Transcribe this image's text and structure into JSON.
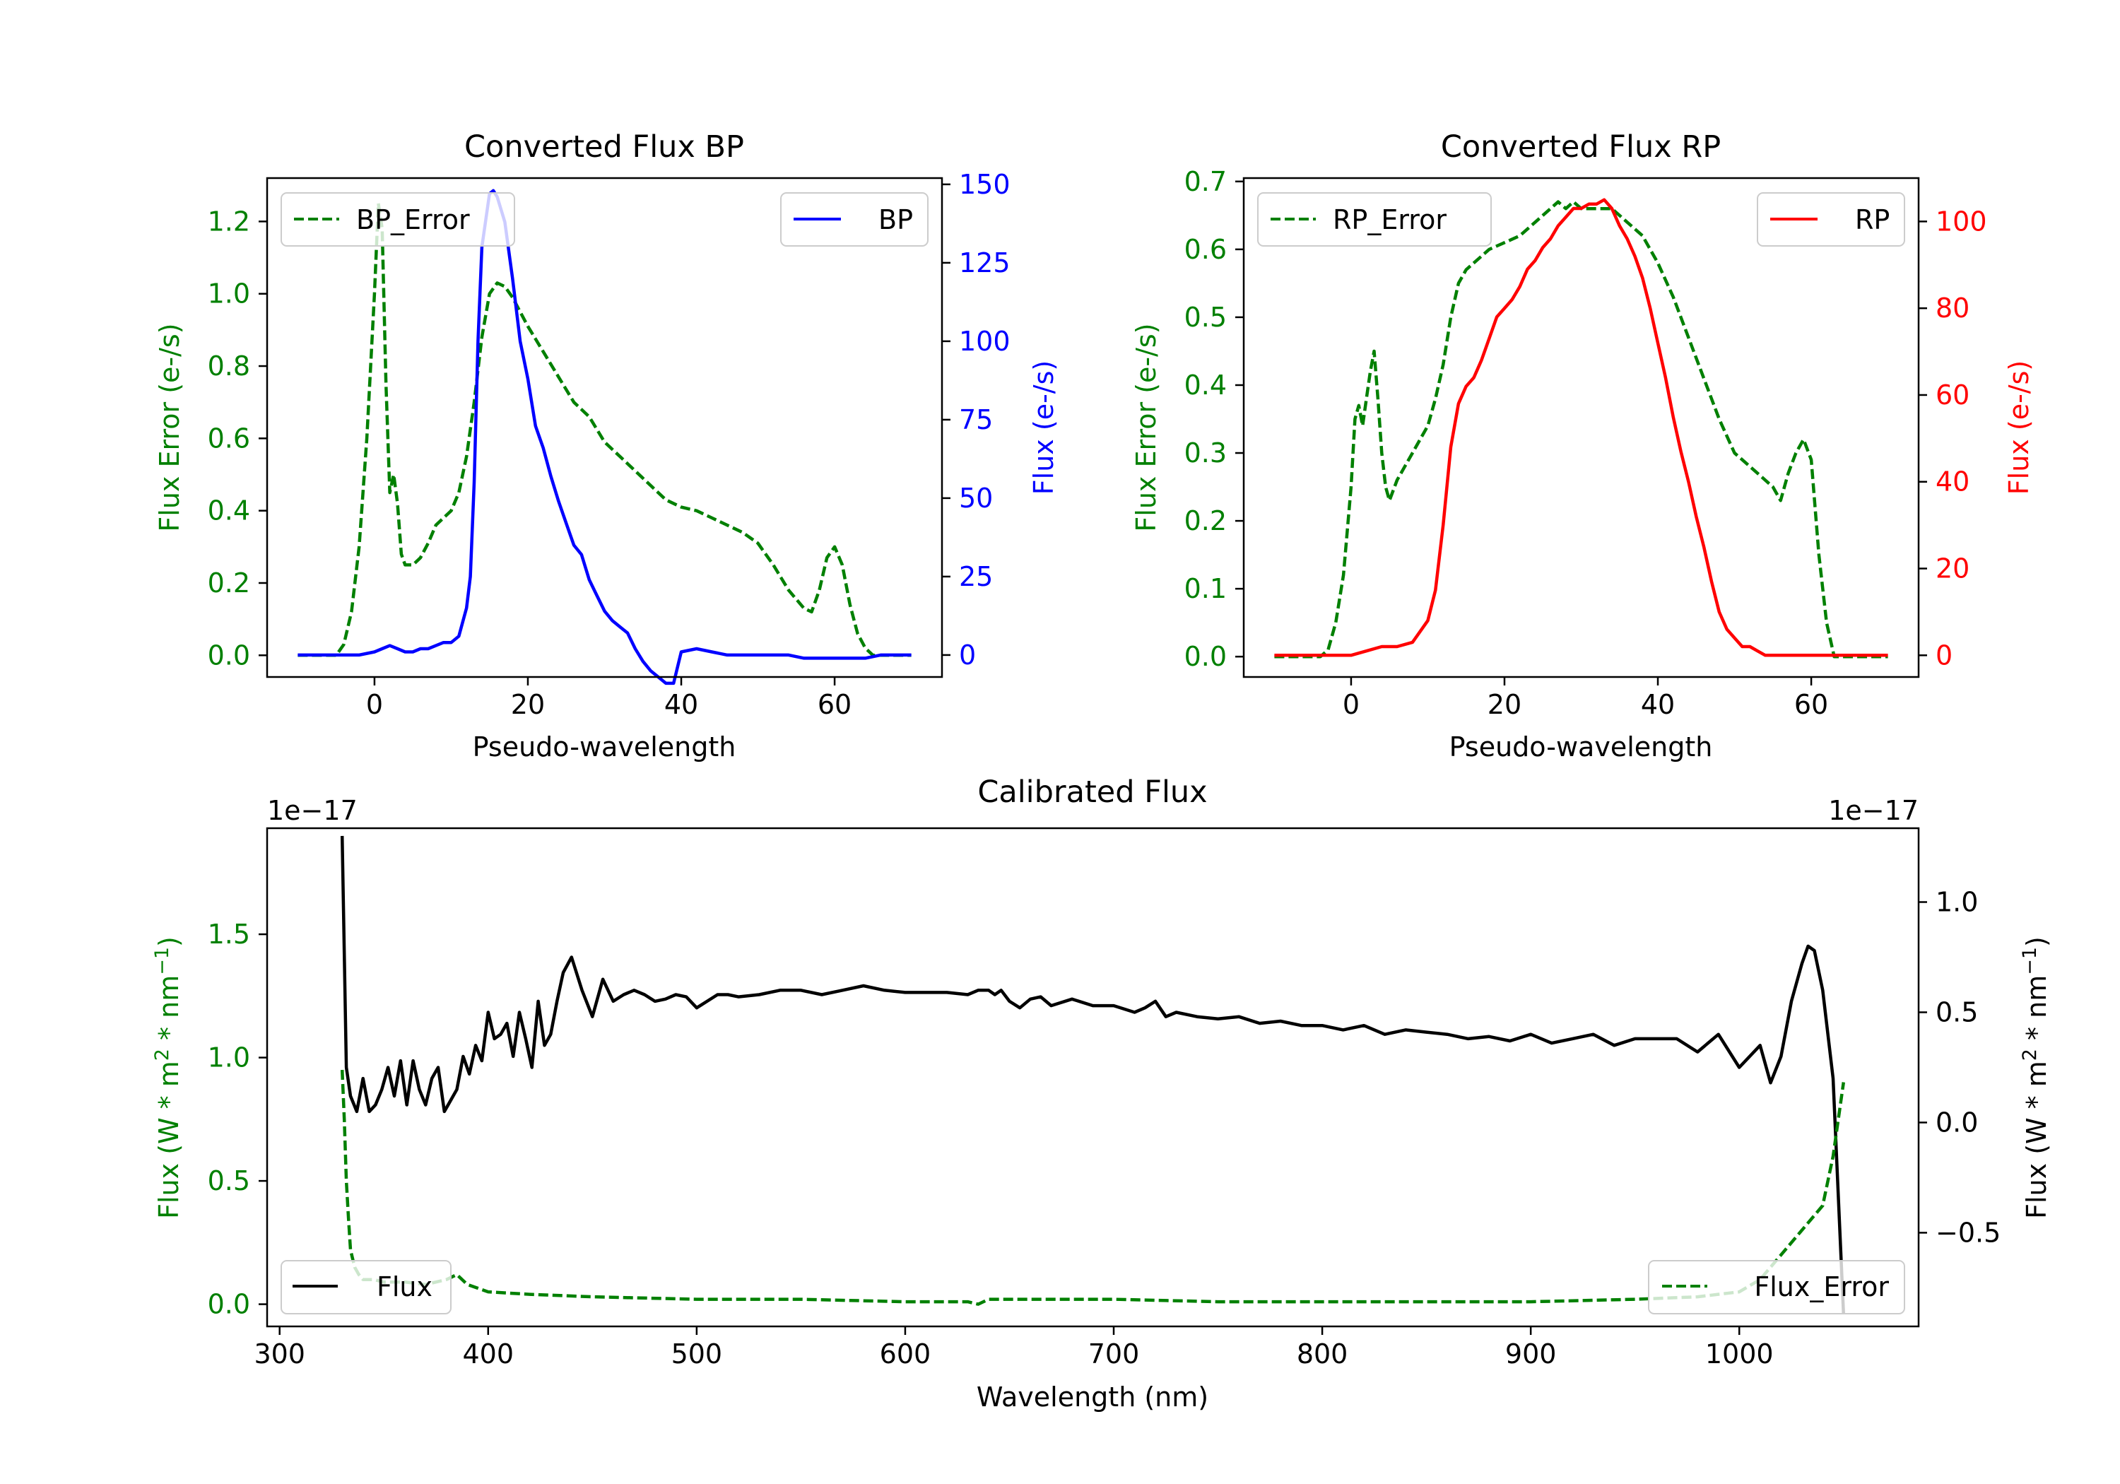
{
  "chart_data": [
    {
      "type": "line",
      "title": "Converted Flux BP",
      "xlabel": "Pseudo-wavelength",
      "ylabel_left": "Flux Error (e-/s)",
      "ylabel_right": "Flux (e-/s)",
      "xlim": [
        -14,
        74
      ],
      "ylim_left": [
        -0.06,
        1.32
      ],
      "ylim_right": [
        -7,
        152
      ],
      "xticks": [
        0,
        20,
        40,
        60
      ],
      "yticks_left": [
        0.0,
        0.2,
        0.4,
        0.6,
        0.8,
        1.0,
        1.2
      ],
      "yticks_right": [
        0,
        25,
        50,
        75,
        100,
        125,
        150
      ],
      "left_color": "#008000",
      "right_color": "#0000ff",
      "series": [
        {
          "name": "BP_Error",
          "axis": "left",
          "style": "dashed",
          "color": "#008000",
          "x": [
            -10,
            -5,
            -4,
            -3,
            -2,
            -1,
            0,
            0.5,
            1,
            1.5,
            2,
            2.5,
            3,
            3.5,
            4,
            5,
            6,
            7,
            8,
            9,
            10,
            11,
            12,
            13,
            14,
            15,
            16,
            17,
            18,
            19,
            20,
            22,
            24,
            26,
            28,
            30,
            32,
            34,
            36,
            38,
            40,
            42,
            44,
            46,
            48,
            50,
            52,
            54,
            56,
            57,
            58,
            59,
            60,
            61,
            62,
            63,
            64,
            65,
            66,
            70
          ],
          "y": [
            0.0,
            0.0,
            0.03,
            0.12,
            0.3,
            0.6,
            1.0,
            1.25,
            1.18,
            0.75,
            0.45,
            0.5,
            0.42,
            0.28,
            0.25,
            0.25,
            0.27,
            0.31,
            0.36,
            0.38,
            0.4,
            0.45,
            0.55,
            0.7,
            0.88,
            1.0,
            1.03,
            1.02,
            0.99,
            0.95,
            0.91,
            0.84,
            0.77,
            0.7,
            0.66,
            0.59,
            0.55,
            0.51,
            0.47,
            0.43,
            0.41,
            0.4,
            0.38,
            0.36,
            0.34,
            0.31,
            0.25,
            0.18,
            0.13,
            0.12,
            0.18,
            0.27,
            0.3,
            0.25,
            0.14,
            0.06,
            0.02,
            0.0,
            0.0,
            0.0
          ]
        },
        {
          "name": "BP",
          "axis": "right",
          "style": "solid",
          "color": "#0000ff",
          "x": [
            -10,
            -5,
            -2,
            0,
            1,
            2,
            3,
            4,
            5,
            6,
            7,
            8,
            9,
            10,
            11,
            12,
            12.5,
            13,
            13.5,
            14,
            15,
            15.5,
            16,
            17,
            18,
            19,
            20,
            21,
            22,
            23,
            24,
            25,
            26,
            27,
            28,
            29,
            30,
            31,
            32,
            33,
            34,
            35,
            36,
            37,
            38,
            39,
            40,
            42,
            44,
            46,
            48,
            50,
            52,
            54,
            56,
            58,
            60,
            62,
            64,
            66,
            70
          ],
          "y": [
            0,
            0,
            0,
            1,
            2,
            3,
            2,
            1,
            1,
            2,
            2,
            3,
            4,
            4,
            6,
            15,
            25,
            55,
            100,
            130,
            147,
            148,
            146,
            138,
            120,
            100,
            88,
            73,
            66,
            57,
            49,
            42,
            35,
            32,
            24,
            19,
            14,
            11,
            9,
            7,
            2,
            -2,
            -5,
            -7,
            -9,
            -9,
            1,
            2,
            1,
            0,
            0,
            0,
            0,
            0,
            -1,
            -1,
            -1,
            -1,
            -1,
            0,
            0
          ]
        }
      ]
    },
    {
      "type": "line",
      "title": "Converted Flux RP",
      "xlabel": "Pseudo-wavelength",
      "ylabel_left": "Flux Error (e-/s)",
      "ylabel_right": "Flux (e-/s)",
      "xlim": [
        -14,
        74
      ],
      "ylim_left": [
        -0.03,
        0.705
      ],
      "ylim_right": [
        -5,
        110
      ],
      "xticks": [
        0,
        20,
        40,
        60
      ],
      "yticks_left": [
        0.0,
        0.1,
        0.2,
        0.3,
        0.4,
        0.5,
        0.6,
        0.7
      ],
      "yticks_right": [
        0,
        20,
        40,
        60,
        80,
        100
      ],
      "left_color": "#008000",
      "right_color": "#ff0000",
      "series": [
        {
          "name": "RP_Error",
          "axis": "left",
          "style": "dashed",
          "color": "#008000",
          "x": [
            -10,
            -4,
            -3,
            -2,
            -1,
            0,
            0.5,
            1,
            1.5,
            2,
            2.5,
            3,
            3.5,
            4,
            4.5,
            5,
            6,
            7,
            8,
            9,
            10,
            11,
            12,
            13,
            14,
            15,
            16,
            18,
            20,
            22,
            24,
            26,
            27,
            28,
            29,
            30,
            32,
            34,
            36,
            38,
            40,
            42,
            44,
            46,
            48,
            50,
            52,
            54,
            55,
            56,
            57,
            58,
            59,
            60,
            61,
            62,
            63,
            64,
            65,
            70
          ],
          "y": [
            0,
            0,
            0.01,
            0.05,
            0.12,
            0.25,
            0.35,
            0.37,
            0.34,
            0.38,
            0.42,
            0.45,
            0.38,
            0.3,
            0.25,
            0.23,
            0.26,
            0.28,
            0.3,
            0.32,
            0.34,
            0.38,
            0.43,
            0.5,
            0.55,
            0.57,
            0.58,
            0.6,
            0.61,
            0.62,
            0.64,
            0.66,
            0.67,
            0.66,
            0.67,
            0.66,
            0.66,
            0.66,
            0.64,
            0.62,
            0.58,
            0.53,
            0.47,
            0.41,
            0.35,
            0.3,
            0.28,
            0.26,
            0.25,
            0.23,
            0.27,
            0.3,
            0.32,
            0.29,
            0.15,
            0.05,
            0.0,
            0.0,
            0.0,
            0.0
          ]
        },
        {
          "name": "RP",
          "axis": "right",
          "style": "solid",
          "color": "#ff0000",
          "x": [
            -10,
            -3,
            0,
            2,
            4,
            6,
            8,
            10,
            11,
            12,
            13,
            14,
            15,
            16,
            17,
            18,
            19,
            20,
            21,
            22,
            23,
            24,
            25,
            26,
            27,
            28,
            29,
            30,
            31,
            32,
            33,
            34,
            35,
            36,
            37,
            38,
            39,
            40,
            41,
            42,
            43,
            44,
            45,
            46,
            47,
            48,
            49,
            50,
            51,
            52,
            53,
            54,
            55,
            56,
            57,
            58,
            60,
            65,
            70
          ],
          "y": [
            0,
            0,
            0,
            1,
            2,
            2,
            3,
            8,
            15,
            30,
            48,
            58,
            62,
            64,
            68,
            73,
            78,
            80,
            82,
            85,
            89,
            91,
            94,
            96,
            99,
            101,
            103,
            103,
            104,
            104,
            105,
            103,
            99,
            96,
            92,
            87,
            80,
            72,
            64,
            55,
            47,
            40,
            32,
            25,
            17,
            10,
            6,
            4,
            2,
            2,
            1,
            0,
            0,
            0,
            0,
            0,
            0,
            0,
            0
          ]
        }
      ]
    },
    {
      "type": "line",
      "title": "Calibrated Flux",
      "xlabel": "Wavelength (nm)",
      "ylabel_left": "Flux (W * m^2 * nm^-1)",
      "ylabel_right": "Flux (W * m^2 * nm^-1)",
      "offset_left": "1e−17",
      "offset_right": "1e−17",
      "xlim": [
        294,
        1086
      ],
      "ylim_left": [
        -0.09,
        1.93
      ],
      "ylim_right": [
        -0.925,
        1.335
      ],
      "xticks": [
        300,
        400,
        500,
        600,
        700,
        800,
        900,
        1000
      ],
      "yticks_left": [
        0.0,
        0.5,
        1.0,
        1.5
      ],
      "yticks_right": [
        -0.5,
        0.0,
        0.5,
        1.0
      ],
      "yticklabels_right": [
        "−0.5",
        "0.0",
        "0.5",
        "1.0"
      ],
      "left_color": "#008000",
      "right_color": "#000000",
      "series": [
        {
          "name": "Flux",
          "axis": "right",
          "style": "solid",
          "color": "#000000",
          "x": [
            330,
            332,
            334,
            337,
            340,
            343,
            346,
            349,
            352,
            355,
            358,
            361,
            364,
            367,
            370,
            373,
            376,
            379,
            382,
            385,
            388,
            391,
            394,
            397,
            400,
            403,
            406,
            409,
            412,
            415,
            418,
            421,
            424,
            427,
            430,
            433,
            436,
            440,
            445,
            450,
            455,
            460,
            465,
            470,
            475,
            480,
            485,
            490,
            495,
            500,
            505,
            510,
            515,
            520,
            530,
            540,
            550,
            560,
            570,
            580,
            590,
            600,
            610,
            620,
            630,
            635,
            640,
            643,
            646,
            650,
            655,
            660,
            665,
            670,
            680,
            690,
            700,
            710,
            715,
            720,
            725,
            730,
            740,
            750,
            760,
            770,
            780,
            790,
            800,
            810,
            820,
            830,
            840,
            850,
            860,
            870,
            880,
            890,
            900,
            910,
            920,
            930,
            940,
            950,
            960,
            970,
            980,
            990,
            1000,
            1010,
            1015,
            1020,
            1025,
            1030,
            1033,
            1036,
            1040,
            1045,
            1050
          ],
          "y": [
            1.3,
            0.25,
            0.12,
            0.05,
            0.2,
            0.05,
            0.08,
            0.15,
            0.25,
            0.12,
            0.28,
            0.08,
            0.28,
            0.15,
            0.08,
            0.2,
            0.25,
            0.05,
            0.1,
            0.15,
            0.3,
            0.22,
            0.35,
            0.28,
            0.5,
            0.38,
            0.4,
            0.45,
            0.3,
            0.5,
            0.38,
            0.25,
            0.55,
            0.35,
            0.4,
            0.55,
            0.68,
            0.75,
            0.6,
            0.48,
            0.65,
            0.55,
            0.58,
            0.6,
            0.58,
            0.55,
            0.56,
            0.58,
            0.57,
            0.52,
            0.55,
            0.58,
            0.58,
            0.57,
            0.58,
            0.6,
            0.6,
            0.58,
            0.6,
            0.62,
            0.6,
            0.59,
            0.59,
            0.59,
            0.58,
            0.6,
            0.6,
            0.58,
            0.6,
            0.55,
            0.52,
            0.56,
            0.57,
            0.53,
            0.56,
            0.53,
            0.53,
            0.5,
            0.52,
            0.55,
            0.48,
            0.5,
            0.48,
            0.47,
            0.48,
            0.45,
            0.46,
            0.44,
            0.44,
            0.42,
            0.44,
            0.4,
            0.42,
            0.41,
            0.4,
            0.38,
            0.39,
            0.37,
            0.4,
            0.36,
            0.38,
            0.4,
            0.35,
            0.38,
            0.38,
            0.38,
            0.32,
            0.4,
            0.25,
            0.35,
            0.18,
            0.3,
            0.55,
            0.72,
            0.8,
            0.78,
            0.6,
            0.2,
            -0.87
          ]
        },
        {
          "name": "Flux_Error",
          "axis": "left",
          "style": "dashed",
          "color": "#008000",
          "x": [
            330,
            331,
            332,
            333,
            334,
            336,
            338,
            340,
            345,
            350,
            360,
            370,
            380,
            385,
            390,
            400,
            420,
            450,
            500,
            550,
            600,
            630,
            635,
            640,
            650,
            700,
            750,
            800,
            850,
            900,
            950,
            980,
            1000,
            1010,
            1020,
            1030,
            1040,
            1045,
            1050
          ],
          "y": [
            0.95,
            0.75,
            0.5,
            0.35,
            0.22,
            0.15,
            0.12,
            0.1,
            0.1,
            0.09,
            0.09,
            0.08,
            0.1,
            0.12,
            0.08,
            0.05,
            0.04,
            0.03,
            0.02,
            0.02,
            0.01,
            0.01,
            0.0,
            0.02,
            0.02,
            0.02,
            0.01,
            0.01,
            0.01,
            0.01,
            0.02,
            0.03,
            0.05,
            0.1,
            0.2,
            0.3,
            0.4,
            0.6,
            0.9
          ]
        }
      ]
    }
  ]
}
